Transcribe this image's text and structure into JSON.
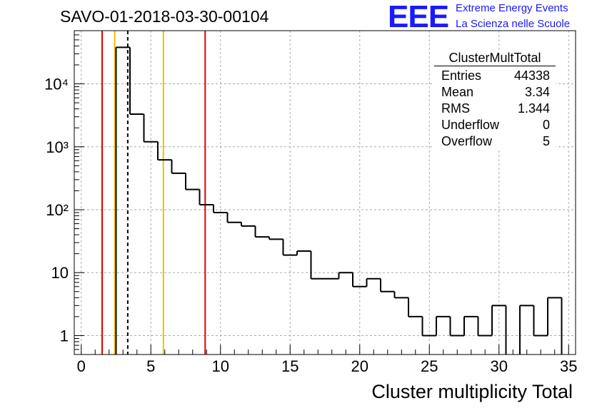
{
  "run_title": "SAVO-01-2018-03-30-00104",
  "logo": {
    "text": "EEE",
    "line1": "Extreme Energy Events",
    "line2": "La Scienza nelle Scuole",
    "color": "#1a1aff"
  },
  "stats_box": {
    "title": "ClusterMultTotal",
    "rows": [
      {
        "label": "Entries",
        "value": "44338"
      },
      {
        "label": "Mean",
        "value": "3.34"
      },
      {
        "label": "RMS",
        "value": "1.344"
      },
      {
        "label": "Underflow",
        "value": "0"
      },
      {
        "label": "Overflow",
        "value": "5"
      }
    ]
  },
  "chart_data": {
    "type": "histogram",
    "title": "SAVO-01-2018-03-30-00104",
    "xlabel": "Cluster multiplicity Total",
    "ylabel": "",
    "xlim": [
      -0.5,
      35.5
    ],
    "ylim": [
      0.5,
      70000
    ],
    "yscale": "log",
    "grid": true,
    "bin_width": 1,
    "x_ticks": [
      0,
      5,
      10,
      15,
      20,
      25,
      30,
      35
    ],
    "y_ticks": [
      {
        "value": 1,
        "label": "1"
      },
      {
        "value": 10,
        "label": "10"
      },
      {
        "value": 100,
        "label": "10²"
      },
      {
        "value": 1000,
        "label": "10³"
      },
      {
        "value": 10000,
        "label": "10⁴"
      }
    ],
    "bins": [
      {
        "x": 0,
        "count": 0
      },
      {
        "x": 1,
        "count": 0
      },
      {
        "x": 2,
        "count": 0
      },
      {
        "x": 3,
        "count": 38000
      },
      {
        "x": 4,
        "count": 3300
      },
      {
        "x": 5,
        "count": 1200
      },
      {
        "x": 6,
        "count": 620
      },
      {
        "x": 7,
        "count": 380
      },
      {
        "x": 8,
        "count": 210
      },
      {
        "x": 9,
        "count": 120
      },
      {
        "x": 10,
        "count": 90
      },
      {
        "x": 11,
        "count": 63
      },
      {
        "x": 12,
        "count": 55
      },
      {
        "x": 13,
        "count": 37
      },
      {
        "x": 14,
        "count": 34
      },
      {
        "x": 15,
        "count": 19
      },
      {
        "x": 16,
        "count": 22
      },
      {
        "x": 17,
        "count": 8
      },
      {
        "x": 18,
        "count": 8
      },
      {
        "x": 19,
        "count": 10
      },
      {
        "x": 20,
        "count": 6
      },
      {
        "x": 21,
        "count": 8
      },
      {
        "x": 22,
        "count": 5
      },
      {
        "x": 23,
        "count": 4
      },
      {
        "x": 24,
        "count": 2
      },
      {
        "x": 25,
        "count": 1
      },
      {
        "x": 26,
        "count": 2
      },
      {
        "x": 27,
        "count": 1
      },
      {
        "x": 28,
        "count": 2
      },
      {
        "x": 29,
        "count": 1
      },
      {
        "x": 30,
        "count": 3
      },
      {
        "x": 31,
        "count": 0
      },
      {
        "x": 32,
        "count": 3
      },
      {
        "x": 33,
        "count": 1
      },
      {
        "x": 34,
        "count": 4
      }
    ],
    "reference_lines": [
      {
        "x": 1.5,
        "color": "#e00000",
        "style": "solid"
      },
      {
        "x": 2.4,
        "color": "#f0c000",
        "style": "solid"
      },
      {
        "x": 3.34,
        "color": "#000000",
        "style": "dashed"
      },
      {
        "x": 5.9,
        "color": "#f0c000",
        "style": "solid"
      },
      {
        "x": 8.9,
        "color": "#e00000",
        "style": "solid"
      }
    ]
  }
}
